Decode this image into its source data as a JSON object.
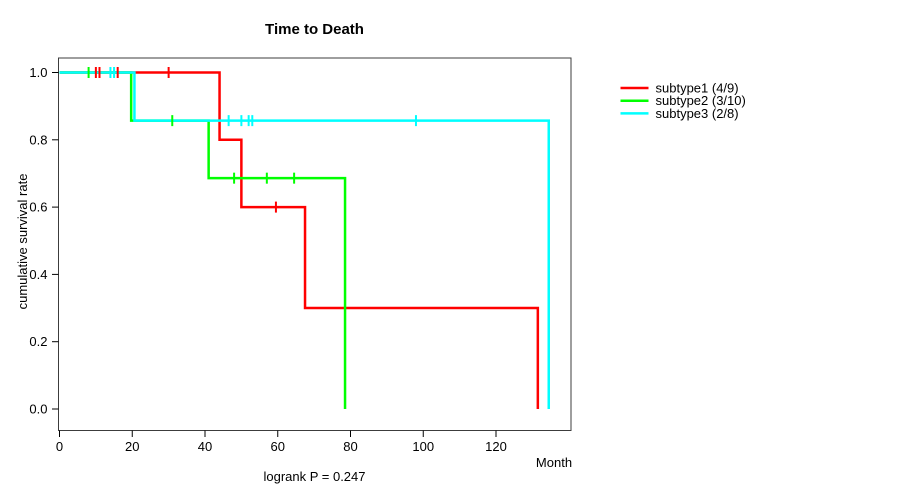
{
  "title": "Time to Death",
  "xlabel": "Month",
  "ylabel": "cumulative survival rate",
  "footer": "logrank P = 0.247",
  "colors": {
    "subtype1": "#ff0000",
    "subtype2": "#00ff00",
    "subtype3": "#00ffff",
    "box": "#3c3c3c",
    "tick": "#000000",
    "background": "#ffffff"
  },
  "legend": [
    {
      "label": "subtype1 (4/9)",
      "color": "#ff0000"
    },
    {
      "label": "subtype2 (3/10)",
      "color": "#00ff00"
    },
    {
      "label": "subtype3 (2/8)",
      "color": "#00ffff"
    }
  ],
  "chart_data": {
    "type": "line",
    "variant": "kaplan-meier-step",
    "title": "Time to Death",
    "xlabel": "Month",
    "ylabel": "cumulative survival rate",
    "annotation": "logrank P = 0.247",
    "xlim": [
      0,
      140.6
    ],
    "ylim": [
      0.0,
      1.0
    ],
    "xticks": [
      0,
      20,
      40,
      60,
      80,
      100,
      120
    ],
    "yticks": [
      0.0,
      0.2,
      0.4,
      0.6,
      0.8,
      1.0
    ],
    "grid": false,
    "legend_position": "right-outside",
    "series": [
      {
        "name": "subtype1 (4/9)",
        "color": "#ff0000",
        "steps": [
          [
            0,
            1.0
          ],
          [
            44,
            1.0
          ],
          [
            44,
            0.8
          ],
          [
            50,
            0.8
          ],
          [
            50,
            0.6
          ],
          [
            67.5,
            0.6
          ],
          [
            67.5,
            0.3
          ],
          [
            131.5,
            0.3
          ],
          [
            131.5,
            0.0
          ]
        ],
        "censor_marks": [
          {
            "t": 10,
            "s": 1.0
          },
          {
            "t": 11,
            "s": 1.0
          },
          {
            "t": 16,
            "s": 1.0
          },
          {
            "t": 30,
            "s": 1.0
          },
          {
            "t": 59.5,
            "s": 0.6
          }
        ]
      },
      {
        "name": "subtype2 (3/10)",
        "color": "#00ff00",
        "steps": [
          [
            0,
            1.0
          ],
          [
            19.7,
            1.0
          ],
          [
            19.7,
            0.857
          ],
          [
            41,
            0.857
          ],
          [
            41,
            0.686
          ],
          [
            78.5,
            0.686
          ],
          [
            78.5,
            0.0
          ]
        ],
        "censor_marks": [
          {
            "t": 8,
            "s": 1.0
          },
          {
            "t": 31,
            "s": 0.857
          },
          {
            "t": 48,
            "s": 0.686
          },
          {
            "t": 57,
            "s": 0.686
          },
          {
            "t": 64.5,
            "s": 0.686
          }
        ]
      },
      {
        "name": "subtype3 (2/8)",
        "color": "#00ffff",
        "steps": [
          [
            0,
            1.0
          ],
          [
            20.6,
            1.0
          ],
          [
            20.6,
            0.857
          ],
          [
            134.5,
            0.857
          ],
          [
            134.5,
            0.0
          ]
        ],
        "censor_marks": [
          {
            "t": 14,
            "s": 1.0
          },
          {
            "t": 15,
            "s": 1.0
          },
          {
            "t": 46.5,
            "s": 0.857
          },
          {
            "t": 50,
            "s": 0.857
          },
          {
            "t": 52,
            "s": 0.857
          },
          {
            "t": 53,
            "s": 0.857
          },
          {
            "t": 98,
            "s": 0.857
          }
        ]
      }
    ]
  }
}
